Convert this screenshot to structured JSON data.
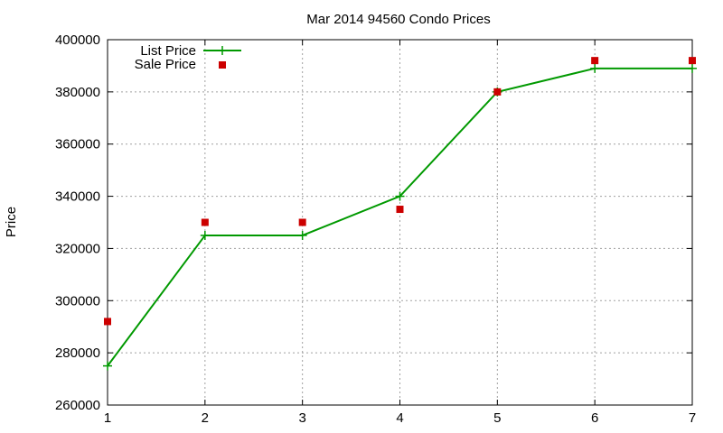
{
  "chart_data": {
    "type": "line",
    "title": "Mar 2014 94560 Condo Prices",
    "ylabel": "Price",
    "xlabel": "",
    "xlim": [
      1,
      7
    ],
    "ylim": [
      260000,
      400000
    ],
    "x_ticks": [
      "1",
      "2",
      "3",
      "4",
      "5",
      "6",
      "7"
    ],
    "y_ticks": [
      "260000",
      "280000",
      "300000",
      "320000",
      "340000",
      "360000",
      "380000",
      "400000"
    ],
    "grid": true,
    "legend_position": "top-left",
    "series": [
      {
        "name": "List Price",
        "style": "line-with-plus-markers",
        "color": "#009900",
        "x": [
          1,
          2,
          3,
          4,
          5,
          6,
          7
        ],
        "y": [
          275000,
          325000,
          325000,
          340000,
          380000,
          389000,
          389000
        ]
      },
      {
        "name": "Sale Price",
        "style": "square-markers",
        "color": "#cc0000",
        "x": [
          1,
          2,
          3,
          4,
          5,
          6,
          7
        ],
        "y": [
          292000,
          330000,
          330000,
          335000,
          380000,
          392000,
          392000
        ]
      }
    ]
  }
}
